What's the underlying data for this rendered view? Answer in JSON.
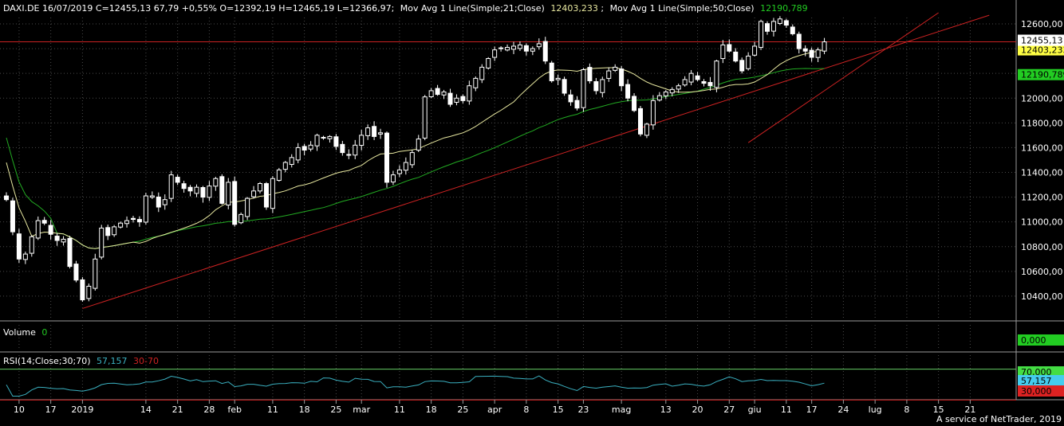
{
  "header": {
    "symbol_info": "DAXI.DE 16/07/2019 C=12455,13 67,79 +0,55% O=12392,19 H=12465,19 L=12366,97;",
    "ma1_label": "Mov Avg 1 Line(Simple;21;Close)",
    "ma1_value": "12403,233",
    "ma2_label": "Mov Avg 1 Line(Simple;50;Close)",
    "ma2_value": "12190,789",
    "sep": ";"
  },
  "volume": {
    "label": "Volume",
    "value": "0",
    "badge": "0,000"
  },
  "rsi": {
    "label": "RSI(14;Close;30;70)",
    "value": "57,157",
    "levels_text": "30-70",
    "badge_upper": "70,000",
    "badge_value": "57,157",
    "badge_lower": "30,000",
    "upper": 70,
    "lower": 30
  },
  "badges": {
    "last": "12455,13",
    "ma1": "12403,233",
    "ma2": "12190,789"
  },
  "footer": "A service of NetTrader, 2019",
  "colors": {
    "background": "#000000",
    "grid": "#4a4a4a",
    "ma21": "#e8e8a0",
    "ma50": "#22aa22",
    "trend": "#cc2222",
    "rsi": "#3ab0c0",
    "candle": "#ffffff"
  },
  "chart_data": {
    "type": "candlestick",
    "title": "DAXI.DE",
    "ylim": [
      10200,
      12750
    ],
    "y_ticks": [
      10400,
      10600,
      10800,
      11000,
      11200,
      11400,
      11600,
      11800,
      12000,
      12200,
      12400,
      12600
    ],
    "y_tick_labels": [
      "10400,00",
      "10600,00",
      "10800,00",
      "11000,00",
      "11200,00",
      "11400,00",
      "11600,00",
      "11800,00",
      "12000,00",
      "12200,00",
      "12400,00",
      "12600,00"
    ],
    "x_ticks": [
      {
        "label": "10",
        "i": 2
      },
      {
        "label": "17",
        "i": 7
      },
      {
        "label": "2019",
        "i": 12
      },
      {
        "label": "14",
        "i": 22
      },
      {
        "label": "21",
        "i": 27
      },
      {
        "label": "28",
        "i": 32
      },
      {
        "label": "feb",
        "i": 36
      },
      {
        "label": "11",
        "i": 42
      },
      {
        "label": "18",
        "i": 47
      },
      {
        "label": "25",
        "i": 52
      },
      {
        "label": "mar",
        "i": 56
      },
      {
        "label": "11",
        "i": 62
      },
      {
        "label": "18",
        "i": 67
      },
      {
        "label": "25",
        "i": 72
      },
      {
        "label": "apr",
        "i": 77
      },
      {
        "label": "8",
        "i": 82
      },
      {
        "label": "15",
        "i": 87
      },
      {
        "label": "23",
        "i": 91
      },
      {
        "label": "mag",
        "i": 97
      },
      {
        "label": "13",
        "i": 104
      },
      {
        "label": "20",
        "i": 109
      },
      {
        "label": "27",
        "i": 114
      },
      {
        "label": "giu",
        "i": 118
      },
      {
        "label": "11",
        "i": 123
      },
      {
        "label": "17",
        "i": 127
      },
      {
        "label": "24",
        "i": 132
      },
      {
        "label": "lug",
        "i": 137
      },
      {
        "label": "8",
        "i": 142
      },
      {
        "label": "15",
        "i": 147
      },
      {
        "label": "21",
        "i": 152
      }
    ],
    "n_slots": 157,
    "close": [
      11180,
      10920,
      10700,
      10740,
      10880,
      11010,
      10990,
      10900,
      10850,
      10860,
      10640,
      10530,
      10370,
      10480,
      10700,
      10950,
      10890,
      10960,
      10990,
      11010,
      11020,
      11000,
      11210,
      11210,
      11120,
      11180,
      11380,
      11320,
      11270,
      11250,
      11280,
      11200,
      11290,
      11350,
      11150,
      11320,
      10980,
      11060,
      11190,
      11250,
      11310,
      11120,
      11350,
      11420,
      11480,
      11520,
      11600,
      11580,
      11620,
      11700,
      11680,
      11690,
      11610,
      11560,
      11540,
      11620,
      11700,
      11760,
      11690,
      11720,
      11320,
      11380,
      11420,
      11480,
      11560,
      11670,
      12010,
      12060,
      12030,
      12050,
      11950,
      12000,
      11980,
      12100,
      12160,
      12250,
      12320,
      12390,
      12400,
      12410,
      12420,
      12430,
      12380,
      12400,
      12440,
      12300,
      12140,
      12160,
      12040,
      11970,
      11920,
      12230,
      12140,
      12060,
      12150,
      12220,
      12250,
      12100,
      12000,
      11900,
      11710,
      11790,
      11980,
      12020,
      12050,
      12070,
      12100,
      12150,
      12200,
      12150,
      12120,
      12100,
      12300,
      12430,
      12380,
      12300,
      12220,
      12340,
      12420,
      12620,
      12540,
      12620,
      12640,
      12590,
      12520,
      12400,
      12380,
      12330,
      12390,
      12455
    ],
    "ma21_label": "Mov Avg 1 Line(Simple;21;Close)",
    "ma50_label": "Mov Avg 1 Line(Simple;50;Close)"
  }
}
